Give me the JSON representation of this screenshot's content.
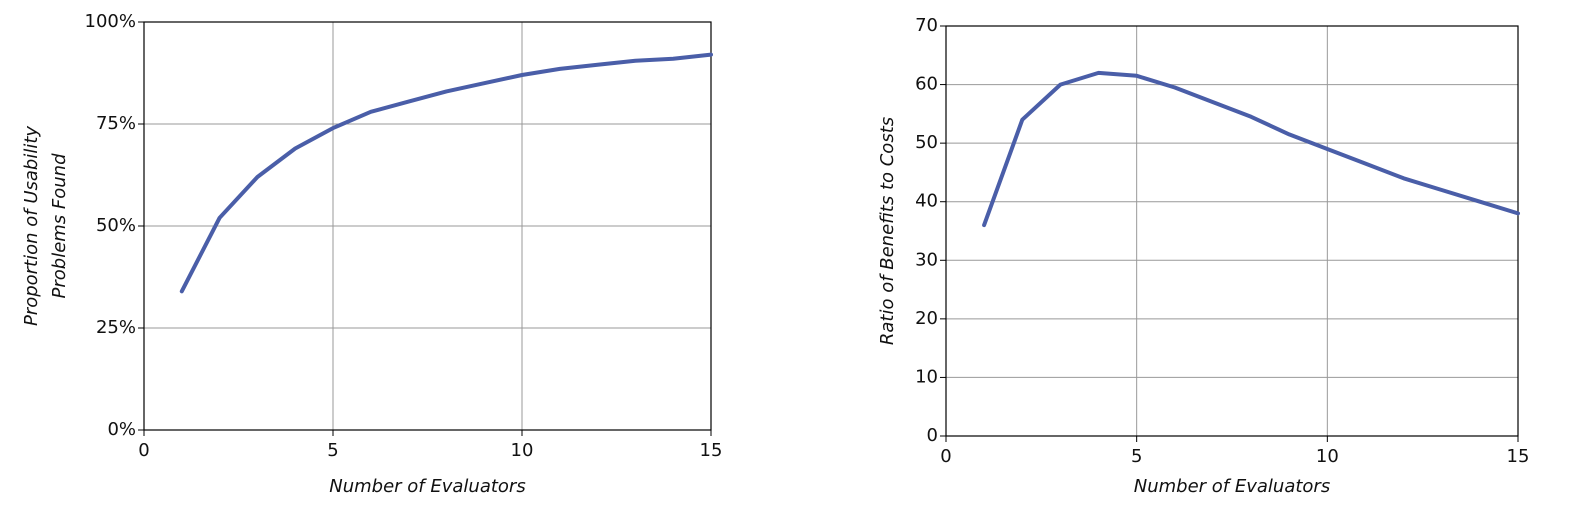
{
  "chart_data": [
    {
      "type": "line",
      "x_label": "Number of Evaluators",
      "y_label": [
        "Proportion of Usability",
        "Problems Found"
      ],
      "xlim": [
        0,
        15
      ],
      "xticks": [
        0,
        5,
        10,
        15
      ],
      "ylim": [
        0,
        100
      ],
      "yticks": [
        {
          "value": 0,
          "label": "0%"
        },
        {
          "value": 25,
          "label": "25%"
        },
        {
          "value": 50,
          "label": "50%"
        },
        {
          "value": 75,
          "label": "75%"
        },
        {
          "value": 100,
          "label": "100%"
        }
      ],
      "grid": true,
      "x": [
        1,
        2,
        3,
        4,
        5,
        6,
        7,
        8,
        9,
        10,
        11,
        12,
        13,
        14,
        15
      ],
      "series": [
        {
          "color": "#4a5ea8",
          "values": [
            34,
            52,
            62,
            69,
            74,
            78,
            80.5,
            83,
            85,
            87,
            88.5,
            89.5,
            90.5,
            91,
            92
          ]
        }
      ]
    },
    {
      "type": "line",
      "x_label": "Number of Evaluators",
      "y_label": [
        "Ratio of Benefits to Costs"
      ],
      "xlim": [
        0,
        15
      ],
      "xticks": [
        0,
        5,
        10,
        15
      ],
      "ylim": [
        0,
        70
      ],
      "yticks": [
        0,
        10,
        20,
        30,
        40,
        50,
        60,
        70
      ],
      "grid": true,
      "x": [
        1,
        2,
        3,
        4,
        5,
        6,
        7,
        8,
        9,
        10,
        11,
        12,
        13,
        14,
        15
      ],
      "series": [
        {
          "color": "#4a5ea8",
          "values": [
            36,
            54,
            60,
            62,
            61.5,
            59.5,
            57,
            54.5,
            51.5,
            49,
            46.5,
            44,
            42,
            40,
            38
          ]
        }
      ]
    }
  ]
}
